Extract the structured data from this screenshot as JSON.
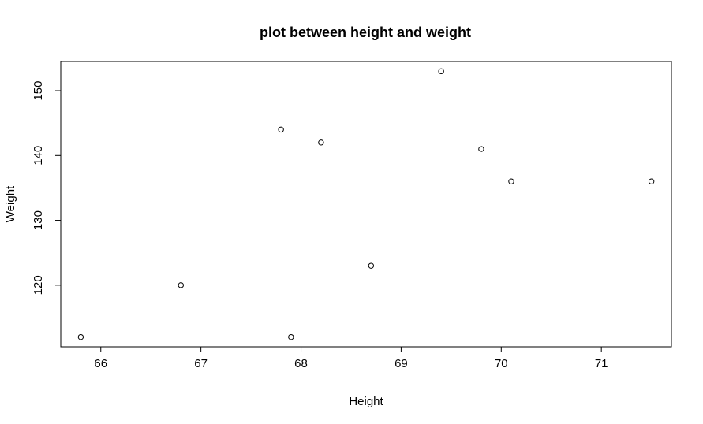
{
  "chart_data": {
    "type": "scatter",
    "title": "plot between height and weight",
    "xlabel": "Height",
    "ylabel": "Weight",
    "xlim": [
      65.6,
      71.7
    ],
    "ylim": [
      110.5,
      154.5
    ],
    "x_ticks": [
      66,
      67,
      68,
      69,
      70,
      71
    ],
    "y_ticks": [
      120,
      130,
      140,
      150
    ],
    "grid": false,
    "legend": false,
    "marker": "open-circle",
    "points": [
      {
        "x": 65.8,
        "y": 112
      },
      {
        "x": 66.8,
        "y": 120
      },
      {
        "x": 67.8,
        "y": 144
      },
      {
        "x": 67.9,
        "y": 112
      },
      {
        "x": 68.2,
        "y": 142
      },
      {
        "x": 68.7,
        "y": 123
      },
      {
        "x": 69.4,
        "y": 153
      },
      {
        "x": 69.8,
        "y": 141
      },
      {
        "x": 70.1,
        "y": 136
      },
      {
        "x": 71.5,
        "y": 136
      }
    ]
  }
}
